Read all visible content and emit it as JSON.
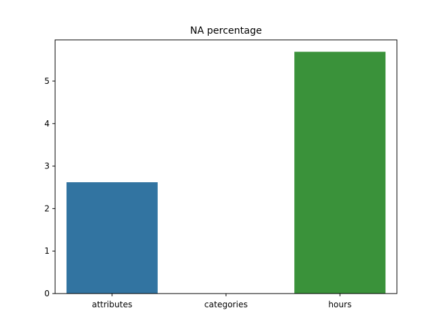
{
  "chart_data": {
    "type": "bar",
    "title": "NA percentage",
    "xlabel": "",
    "ylabel": "",
    "categories": [
      "attributes",
      "categories",
      "hours"
    ],
    "values": [
      2.62,
      0.0,
      5.69
    ],
    "colors": [
      "#3274a1",
      "#e1812c",
      "#3a923a"
    ],
    "ylim": [
      0,
      5.97
    ],
    "yticks": [
      0,
      1,
      2,
      3,
      4,
      5
    ],
    "grid": false,
    "legend": false
  }
}
